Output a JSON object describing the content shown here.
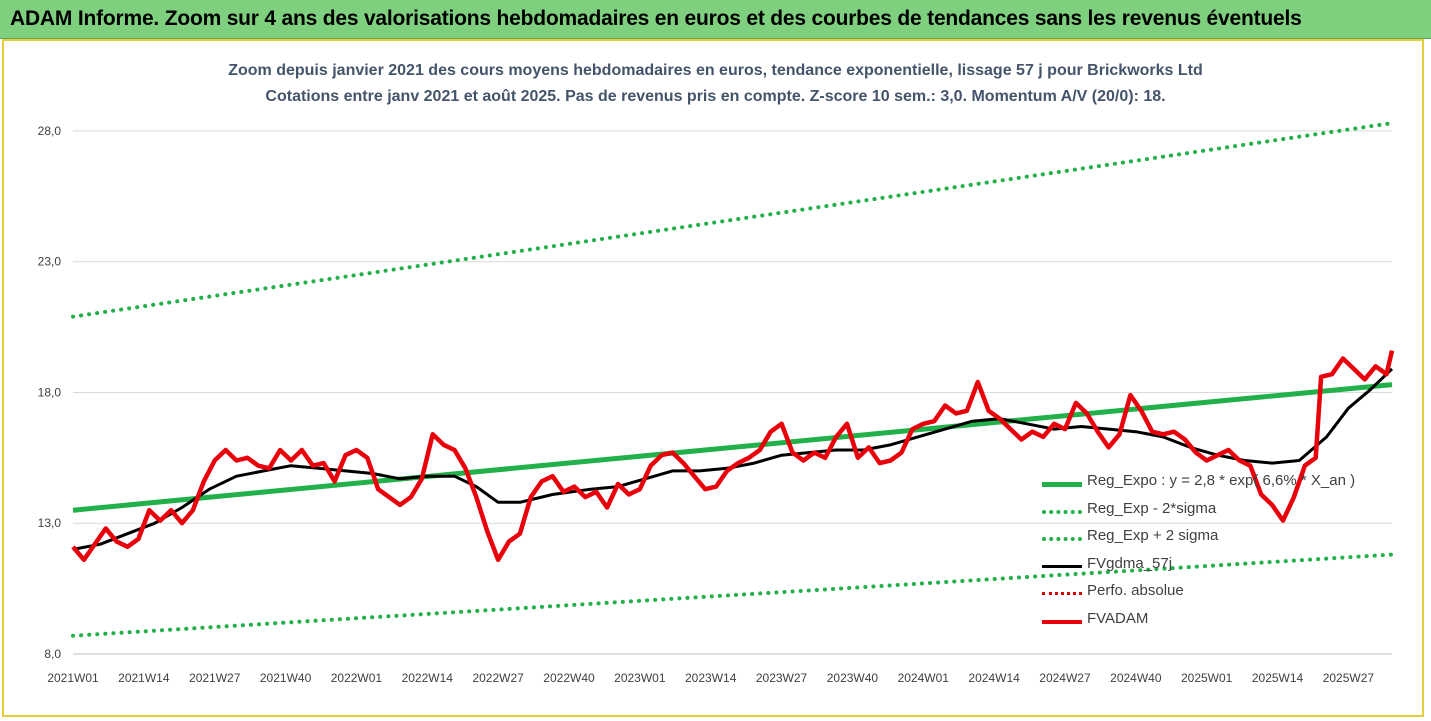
{
  "banner": {
    "title": "ADAM Informe. Zoom sur 4 ans des valorisations hebdomadaires en euros et des courbes de tendances sans les revenus éventuels"
  },
  "chart_data": {
    "type": "line",
    "title": "Zoom depuis janvier 2021 des cours moyens hebdomadaires en euros, tendance exponentielle, lissage 57 j pour Brickworks Ltd",
    "subtitle": "Cotations entre janv 2021 et août 2025. Pas de revenus pris en compte. Z-score 10 sem.: 3,0. Momentum A/V (20/0): 18.",
    "ylim": [
      8,
      28.8
    ],
    "y_ticks": [
      "8,0",
      "13,0",
      "18,0",
      "23,0",
      "28,0"
    ],
    "y_tick_values": [
      8,
      13,
      18,
      23,
      28
    ],
    "x_ticks": [
      "2021W01",
      "2021W14",
      "2021W27",
      "2021W40",
      "2022W01",
      "2022W14",
      "2022W27",
      "2022W40",
      "2023W01",
      "2023W14",
      "2023W27",
      "2023W40",
      "2024W01",
      "2024W14",
      "2024W27",
      "2024W40",
      "2025W01",
      "2025W14",
      "2025W27"
    ],
    "x_tick_indices": [
      0,
      13,
      26,
      39,
      52,
      65,
      78,
      91,
      104,
      117,
      130,
      143,
      156,
      169,
      182,
      195,
      208,
      221,
      234
    ],
    "n_weeks": 243,
    "grid": true,
    "legend_position": "bottom-right, inside plot",
    "series": [
      {
        "name": "Reg_Expo : y = 2,8 * exp( 6,6% * X_an )",
        "style": "solid",
        "color": "#22b04a",
        "points": [
          [
            0,
            13.5
          ],
          [
            242,
            18.3
          ]
        ]
      },
      {
        "name": "Reg_Exp - 2*sigma",
        "style": "dotted",
        "color": "#22b04a",
        "points": [
          [
            0,
            8.7
          ],
          [
            242,
            11.8
          ]
        ]
      },
      {
        "name": "Reg_Exp + 2 sigma",
        "style": "dotted",
        "color": "#22b04a",
        "points": [
          [
            0,
            20.9
          ],
          [
            242,
            28.3
          ]
        ]
      },
      {
        "name": "FVgdma_57j",
        "style": "solid",
        "color": "#000000",
        "points": [
          [
            0,
            12.0
          ],
          [
            5,
            12.2
          ],
          [
            10,
            12.6
          ],
          [
            15,
            13.0
          ],
          [
            20,
            13.6
          ],
          [
            25,
            14.3
          ],
          [
            30,
            14.8
          ],
          [
            35,
            15.0
          ],
          [
            40,
            15.2
          ],
          [
            45,
            15.1
          ],
          [
            50,
            15.0
          ],
          [
            55,
            14.9
          ],
          [
            60,
            14.7
          ],
          [
            65,
            14.8
          ],
          [
            70,
            14.8
          ],
          [
            74,
            14.4
          ],
          [
            78,
            13.8
          ],
          [
            82,
            13.8
          ],
          [
            88,
            14.1
          ],
          [
            95,
            14.3
          ],
          [
            100,
            14.4
          ],
          [
            105,
            14.7
          ],
          [
            110,
            15.0
          ],
          [
            115,
            15.0
          ],
          [
            120,
            15.1
          ],
          [
            125,
            15.3
          ],
          [
            130,
            15.6
          ],
          [
            135,
            15.7
          ],
          [
            140,
            15.8
          ],
          [
            145,
            15.8
          ],
          [
            150,
            16.0
          ],
          [
            155,
            16.3
          ],
          [
            160,
            16.6
          ],
          [
            165,
            16.9
          ],
          [
            170,
            17.0
          ],
          [
            175,
            16.8
          ],
          [
            180,
            16.6
          ],
          [
            185,
            16.7
          ],
          [
            190,
            16.6
          ],
          [
            195,
            16.5
          ],
          [
            200,
            16.3
          ],
          [
            205,
            15.9
          ],
          [
            210,
            15.6
          ],
          [
            215,
            15.4
          ],
          [
            220,
            15.3
          ],
          [
            225,
            15.4
          ],
          [
            230,
            16.3
          ],
          [
            234,
            17.4
          ],
          [
            238,
            18.1
          ],
          [
            242,
            18.9
          ]
        ]
      },
      {
        "name": "Perfo. absolue",
        "style": "dotted",
        "color": "#d40000",
        "points": []
      },
      {
        "name": "FVADAM",
        "style": "solid",
        "color": "#e8000b",
        "points": [
          [
            0,
            12.1
          ],
          [
            2,
            11.6
          ],
          [
            4,
            12.2
          ],
          [
            6,
            12.8
          ],
          [
            8,
            12.3
          ],
          [
            10,
            12.1
          ],
          [
            12,
            12.4
          ],
          [
            14,
            13.5
          ],
          [
            16,
            13.1
          ],
          [
            18,
            13.5
          ],
          [
            20,
            13.0
          ],
          [
            22,
            13.5
          ],
          [
            24,
            14.6
          ],
          [
            26,
            15.4
          ],
          [
            28,
            15.8
          ],
          [
            30,
            15.4
          ],
          [
            32,
            15.5
          ],
          [
            34,
            15.2
          ],
          [
            36,
            15.1
          ],
          [
            38,
            15.8
          ],
          [
            40,
            15.4
          ],
          [
            42,
            15.8
          ],
          [
            44,
            15.2
          ],
          [
            46,
            15.3
          ],
          [
            48,
            14.6
          ],
          [
            50,
            15.6
          ],
          [
            52,
            15.8
          ],
          [
            54,
            15.5
          ],
          [
            56,
            14.3
          ],
          [
            58,
            14.0
          ],
          [
            60,
            13.7
          ],
          [
            62,
            14.0
          ],
          [
            64,
            14.7
          ],
          [
            66,
            16.4
          ],
          [
            68,
            16.0
          ],
          [
            70,
            15.8
          ],
          [
            72,
            15.1
          ],
          [
            74,
            14.0
          ],
          [
            76,
            12.7
          ],
          [
            78,
            11.6
          ],
          [
            80,
            12.3
          ],
          [
            82,
            12.6
          ],
          [
            84,
            14.0
          ],
          [
            86,
            14.6
          ],
          [
            88,
            14.8
          ],
          [
            90,
            14.2
          ],
          [
            92,
            14.4
          ],
          [
            94,
            14.0
          ],
          [
            96,
            14.2
          ],
          [
            98,
            13.6
          ],
          [
            100,
            14.5
          ],
          [
            102,
            14.1
          ],
          [
            104,
            14.3
          ],
          [
            106,
            15.2
          ],
          [
            108,
            15.6
          ],
          [
            110,
            15.7
          ],
          [
            112,
            15.3
          ],
          [
            114,
            14.8
          ],
          [
            116,
            14.3
          ],
          [
            118,
            14.4
          ],
          [
            120,
            15.0
          ],
          [
            122,
            15.3
          ],
          [
            124,
            15.5
          ],
          [
            126,
            15.8
          ],
          [
            128,
            16.5
          ],
          [
            130,
            16.8
          ],
          [
            132,
            15.7
          ],
          [
            134,
            15.4
          ],
          [
            136,
            15.7
          ],
          [
            138,
            15.5
          ],
          [
            140,
            16.3
          ],
          [
            142,
            16.8
          ],
          [
            144,
            15.5
          ],
          [
            146,
            15.9
          ],
          [
            148,
            15.3
          ],
          [
            150,
            15.4
          ],
          [
            152,
            15.7
          ],
          [
            154,
            16.6
          ],
          [
            156,
            16.8
          ],
          [
            158,
            16.9
          ],
          [
            160,
            17.5
          ],
          [
            162,
            17.2
          ],
          [
            164,
            17.3
          ],
          [
            166,
            18.4
          ],
          [
            168,
            17.3
          ],
          [
            170,
            17.0
          ],
          [
            172,
            16.6
          ],
          [
            174,
            16.2
          ],
          [
            176,
            16.5
          ],
          [
            178,
            16.3
          ],
          [
            180,
            16.8
          ],
          [
            182,
            16.6
          ],
          [
            184,
            17.6
          ],
          [
            186,
            17.2
          ],
          [
            188,
            16.5
          ],
          [
            190,
            15.9
          ],
          [
            192,
            16.4
          ],
          [
            194,
            17.9
          ],
          [
            196,
            17.3
          ],
          [
            198,
            16.5
          ],
          [
            200,
            16.4
          ],
          [
            202,
            16.5
          ],
          [
            204,
            16.2
          ],
          [
            206,
            15.7
          ],
          [
            208,
            15.4
          ],
          [
            210,
            15.6
          ],
          [
            212,
            15.8
          ],
          [
            214,
            15.4
          ],
          [
            216,
            15.2
          ],
          [
            218,
            14.1
          ],
          [
            220,
            13.7
          ],
          [
            222,
            13.1
          ],
          [
            224,
            14.0
          ],
          [
            226,
            15.2
          ],
          [
            228,
            15.5
          ],
          [
            229,
            18.6
          ],
          [
            231,
            18.7
          ],
          [
            233,
            19.3
          ],
          [
            235,
            18.9
          ],
          [
            237,
            18.5
          ],
          [
            239,
            19.0
          ],
          [
            241,
            18.7
          ],
          [
            242,
            19.6
          ]
        ]
      }
    ]
  }
}
